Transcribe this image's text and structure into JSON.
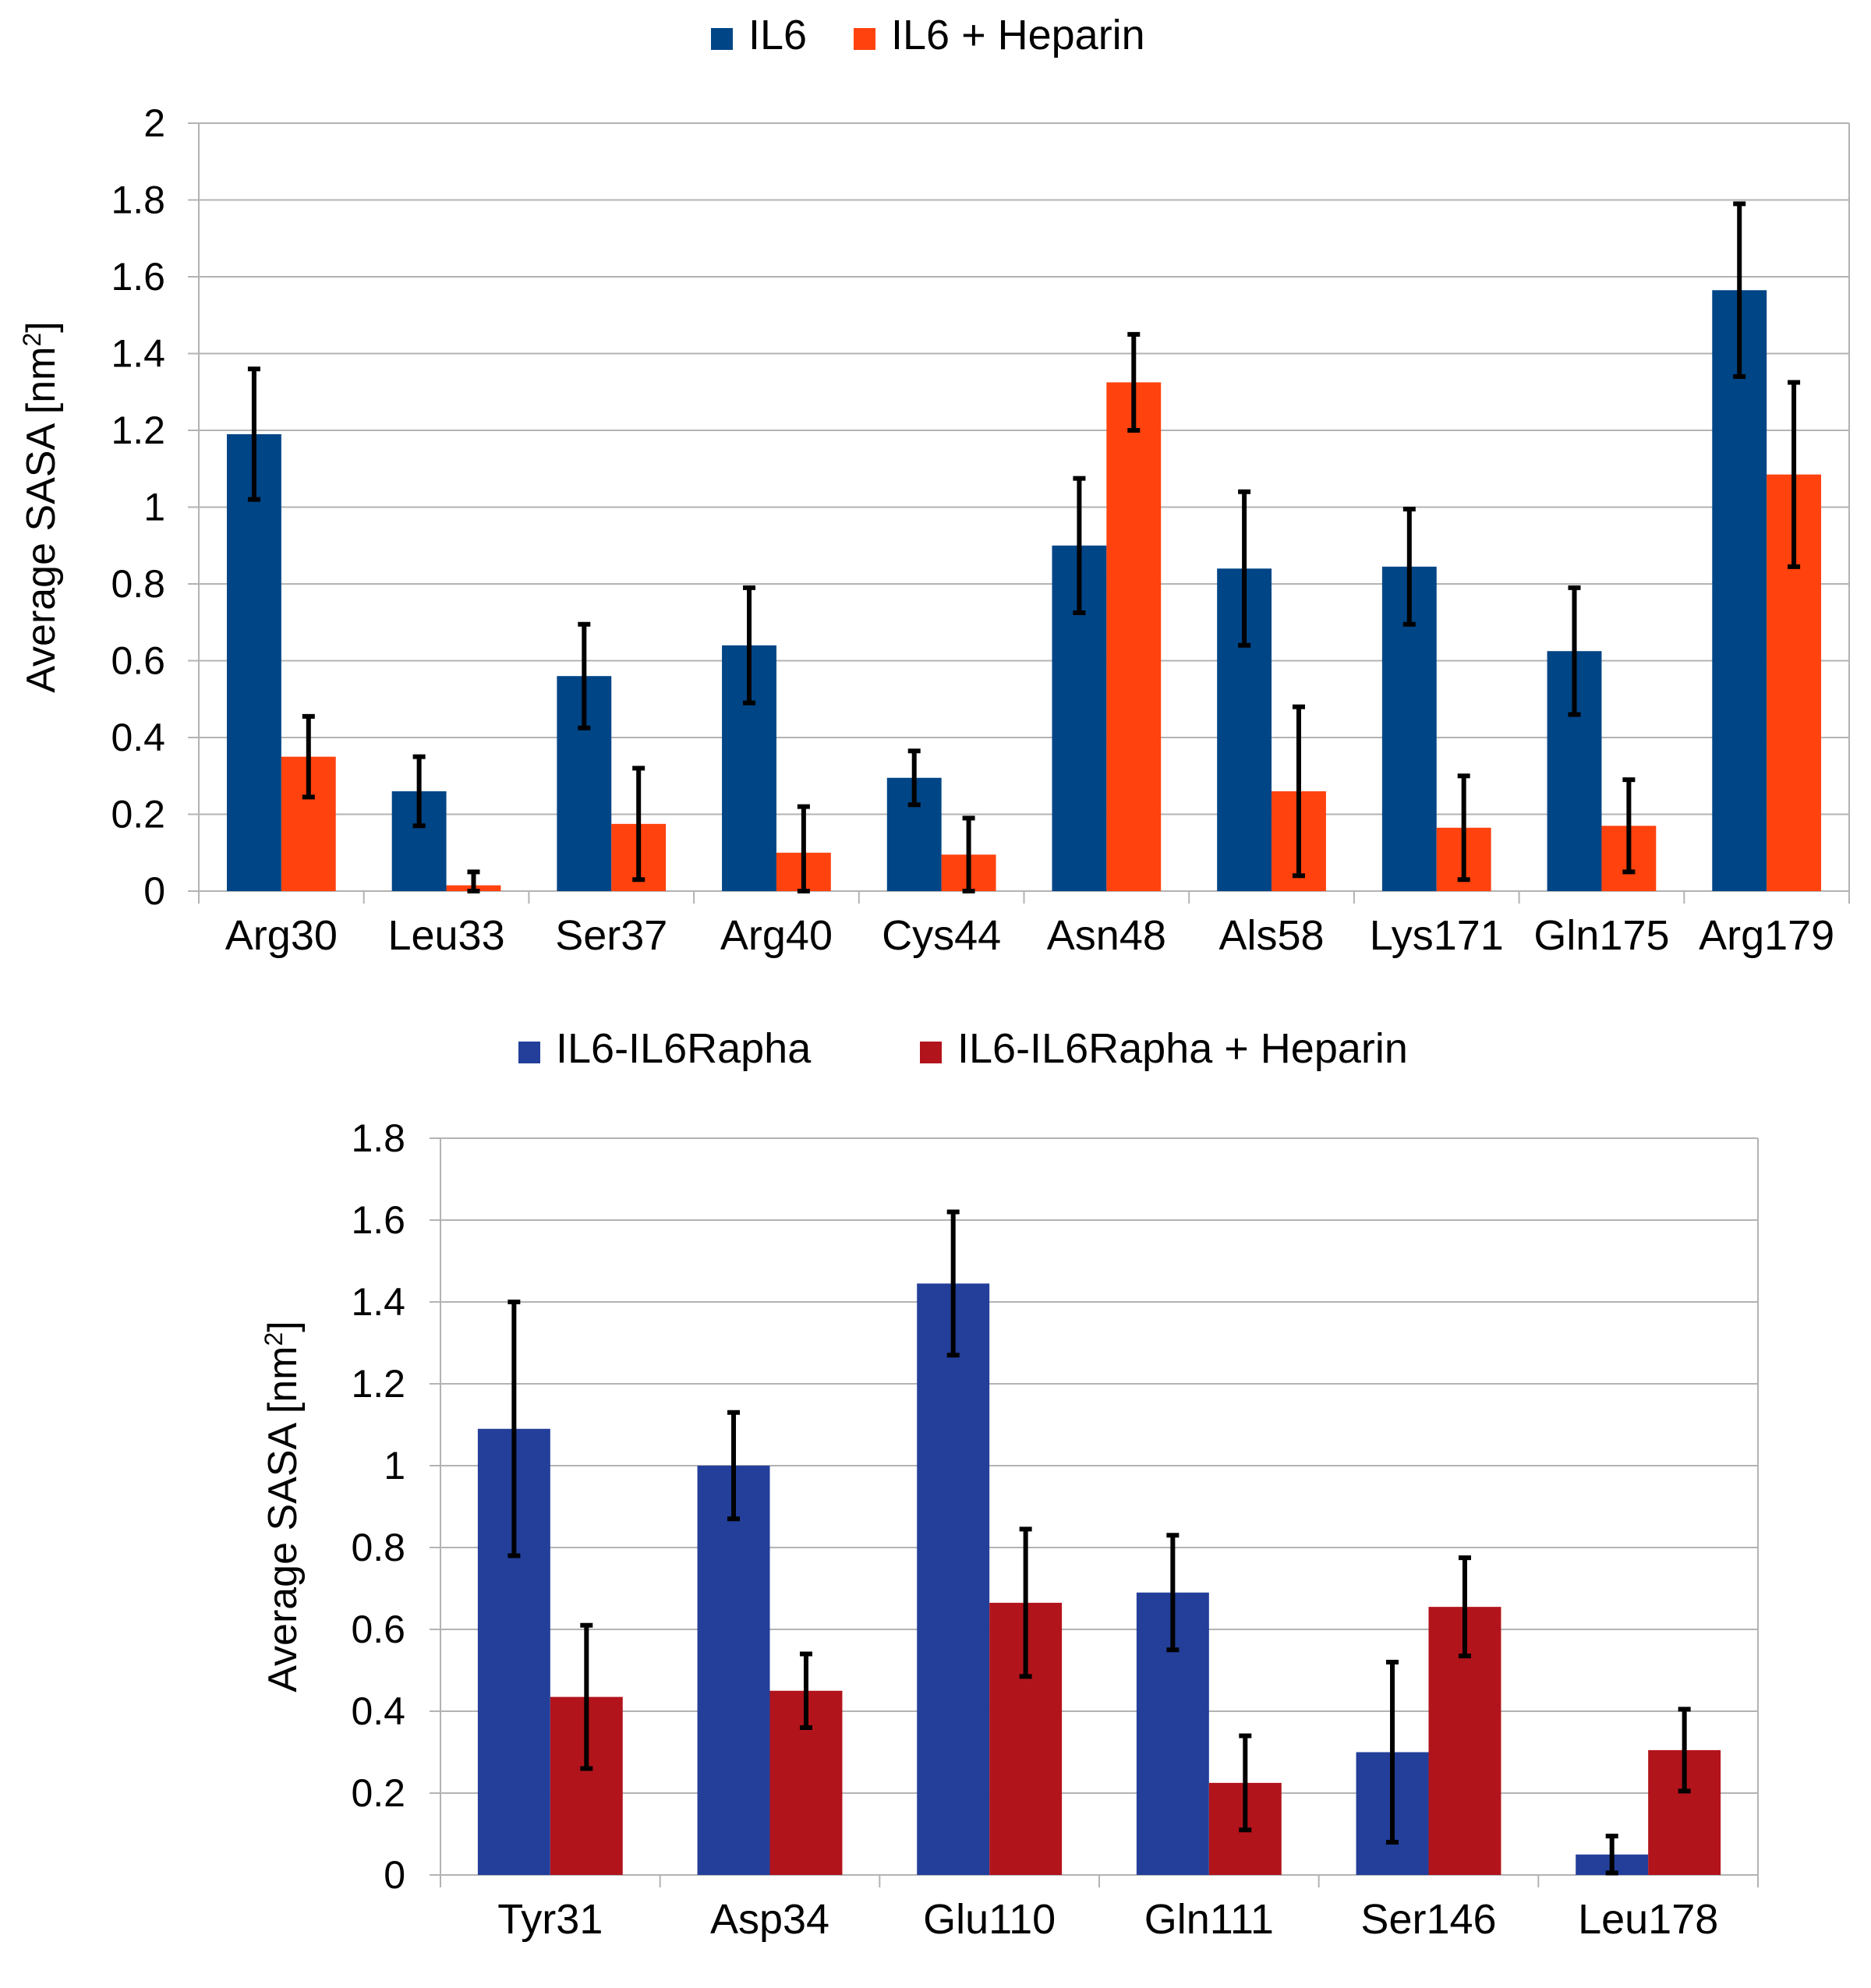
{
  "chart_data": [
    {
      "type": "bar",
      "ylabel": "Average SASA",
      "yunit": "nm",
      "yunit_exp": "2",
      "ylim": [
        0,
        2
      ],
      "ystep": 0.2,
      "yticks": [
        "0",
        "0.2",
        "0.4",
        "0.6",
        "0.8",
        "1",
        "1.2",
        "1.4",
        "1.6",
        "1.8",
        "2"
      ],
      "grid": true,
      "legend_position": "top-center",
      "categories": [
        "Arg30",
        "Leu33",
        "Ser37",
        "Arg40",
        "Cys44",
        "Asn48",
        "Als58",
        "Lys171",
        "Gln175",
        "Arg179"
      ],
      "series": [
        {
          "name": "IL6",
          "color": "#004586",
          "values": [
            1.19,
            0.26,
            0.56,
            0.64,
            0.295,
            0.9,
            0.84,
            0.845,
            0.625,
            1.565
          ],
          "errors": [
            0.17,
            0.09,
            0.135,
            0.15,
            0.07,
            0.175,
            0.2,
            0.15,
            0.165,
            0.225
          ]
        },
        {
          "name": "IL6 + Heparin",
          "color": "#ff420e",
          "values": [
            0.35,
            0.015,
            0.175,
            0.1,
            0.095,
            1.325,
            0.26,
            0.165,
            0.17,
            1.085
          ],
          "errors": [
            0.105,
            0.035,
            0.145,
            0.12,
            0.095,
            0.125,
            0.22,
            0.135,
            0.12,
            0.24
          ]
        }
      ]
    },
    {
      "type": "bar",
      "ylabel": "Average SASA",
      "yunit": "nm",
      "yunit_exp": "2",
      "ylim": [
        0,
        1.8
      ],
      "ystep": 0.2,
      "yticks": [
        "0",
        "0.2",
        "0.4",
        "0.6",
        "0.8",
        "1",
        "1.2",
        "1.4",
        "1.6",
        "1.8"
      ],
      "grid": true,
      "legend_position": "top-center",
      "categories": [
        "Tyr31",
        "Asp34",
        "Glu110",
        "Gln111",
        "Ser146",
        "Leu178"
      ],
      "series": [
        {
          "name": "IL6-IL6Rapha",
          "color": "#233f9a",
          "values": [
            1.09,
            1.0,
            1.445,
            0.69,
            0.3,
            0.05
          ],
          "errors": [
            0.31,
            0.13,
            0.175,
            0.14,
            0.22,
            0.045
          ]
        },
        {
          "name": "IL6-IL6Rapha + Heparin",
          "color": "#b2141c",
          "values": [
            0.435,
            0.45,
            0.665,
            0.225,
            0.655,
            0.305
          ],
          "errors": [
            0.175,
            0.09,
            0.18,
            0.115,
            0.12,
            0.1
          ]
        }
      ]
    }
  ]
}
